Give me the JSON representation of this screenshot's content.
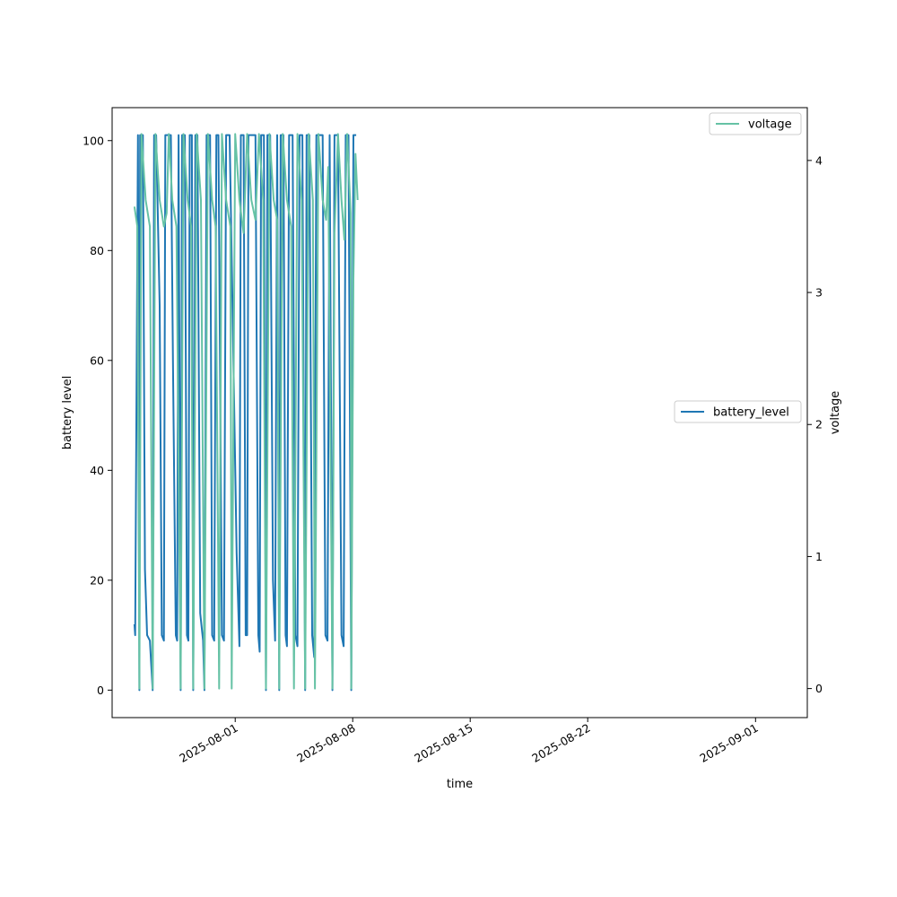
{
  "chart_data": {
    "type": "line",
    "xlabel": "time",
    "ylabel_left": "battery level",
    "ylabel_right": "voltage",
    "x_range": [
      "2025-07-24T16:00",
      "2025-09-04T02:00"
    ],
    "ylim_left": [
      -5,
      106
    ],
    "ylim_right": [
      -0.22,
      4.4
    ],
    "x_ticks": [
      "2025-08-01",
      "2025-08-08",
      "2025-08-15",
      "2025-08-22",
      "2025-09-01"
    ],
    "y_ticks_left": [
      0,
      20,
      40,
      60,
      80,
      100
    ],
    "y_ticks_right": [
      0,
      1,
      2,
      3,
      4
    ],
    "grid": false,
    "legends": [
      {
        "series": "voltage",
        "placement": "upper-right"
      },
      {
        "series": "battery_level",
        "placement": "center-right"
      }
    ],
    "series": [
      {
        "name": "battery_level",
        "axis": "left",
        "color": "#1f77b4",
        "points": [
          [
            "2025-07-26T00:00",
            12
          ],
          [
            "2025-07-26T01:00",
            10
          ],
          [
            "2025-07-26T05:00",
            101
          ],
          [
            "2025-07-26T07:00",
            0
          ],
          [
            "2025-07-26T08:00",
            101
          ],
          [
            "2025-07-26T12:00",
            101
          ],
          [
            "2025-07-26T15:00",
            22
          ],
          [
            "2025-07-26T18:00",
            10
          ],
          [
            "2025-07-26T22:00",
            9
          ],
          [
            "2025-07-27T02:00",
            0
          ],
          [
            "2025-07-27T04:00",
            101
          ],
          [
            "2025-07-27T07:00",
            101
          ],
          [
            "2025-07-27T12:00",
            70
          ],
          [
            "2025-07-27T15:00",
            10
          ],
          [
            "2025-07-27T18:00",
            9
          ],
          [
            "2025-07-27T20:00",
            101
          ],
          [
            "2025-07-28T00:00",
            101
          ],
          [
            "2025-07-28T04:00",
            101
          ],
          [
            "2025-07-28T07:00",
            60
          ],
          [
            "2025-07-28T11:00",
            10
          ],
          [
            "2025-07-28T13:00",
            9
          ],
          [
            "2025-07-28T15:00",
            101
          ],
          [
            "2025-07-28T18:00",
            0
          ],
          [
            "2025-07-28T20:00",
            101
          ],
          [
            "2025-07-29T00:00",
            101
          ],
          [
            "2025-07-29T03:00",
            10
          ],
          [
            "2025-07-29T05:00",
            9
          ],
          [
            "2025-07-29T07:00",
            101
          ],
          [
            "2025-07-29T10:00",
            101
          ],
          [
            "2025-07-29T12:00",
            0
          ],
          [
            "2025-07-29T15:00",
            101
          ],
          [
            "2025-07-29T18:00",
            101
          ],
          [
            "2025-07-29T22:00",
            14
          ],
          [
            "2025-07-30T02:00",
            9
          ],
          [
            "2025-07-30T04:00",
            0
          ],
          [
            "2025-07-30T07:00",
            101
          ],
          [
            "2025-07-30T12:00",
            101
          ],
          [
            "2025-07-30T15:00",
            10
          ],
          [
            "2025-07-30T18:00",
            9
          ],
          [
            "2025-07-30T21:00",
            101
          ],
          [
            "2025-07-31T00:00",
            101
          ],
          [
            "2025-07-31T05:00",
            10
          ],
          [
            "2025-07-31T08:00",
            9
          ],
          [
            "2025-07-31T11:00",
            101
          ],
          [
            "2025-07-31T16:00",
            101
          ],
          [
            "2025-08-01T02:00",
            25
          ],
          [
            "2025-08-01T06:00",
            8
          ],
          [
            "2025-08-01T08:00",
            101
          ],
          [
            "2025-08-01T12:00",
            101
          ],
          [
            "2025-08-01T15:00",
            10
          ],
          [
            "2025-08-01T17:00",
            10
          ],
          [
            "2025-08-01T19:00",
            101
          ],
          [
            "2025-08-02T00:00",
            101
          ],
          [
            "2025-08-02T05:00",
            101
          ],
          [
            "2025-08-02T09:00",
            10
          ],
          [
            "2025-08-02T11:00",
            7
          ],
          [
            "2025-08-02T13:00",
            101
          ],
          [
            "2025-08-02T17:00",
            101
          ],
          [
            "2025-08-02T20:00",
            0
          ],
          [
            "2025-08-02T22:00",
            101
          ],
          [
            "2025-08-03T02:00",
            101
          ],
          [
            "2025-08-03T06:00",
            20
          ],
          [
            "2025-08-03T09:00",
            9
          ],
          [
            "2025-08-03T12:00",
            101
          ],
          [
            "2025-08-03T15:00",
            0
          ],
          [
            "2025-08-03T17:00",
            101
          ],
          [
            "2025-08-03T21:00",
            101
          ],
          [
            "2025-08-04T00:00",
            10
          ],
          [
            "2025-08-04T02:00",
            8
          ],
          [
            "2025-08-04T05:00",
            101
          ],
          [
            "2025-08-04T10:00",
            101
          ],
          [
            "2025-08-04T14:00",
            10
          ],
          [
            "2025-08-04T17:00",
            8
          ],
          [
            "2025-08-04T20:00",
            101
          ],
          [
            "2025-08-05T00:00",
            101
          ],
          [
            "2025-08-05T04:00",
            0
          ],
          [
            "2025-08-05T06:00",
            101
          ],
          [
            "2025-08-05T10:00",
            101
          ],
          [
            "2025-08-05T14:00",
            10
          ],
          [
            "2025-08-05T17:00",
            6
          ],
          [
            "2025-08-05T20:00",
            101
          ],
          [
            "2025-08-06T00:00",
            101
          ],
          [
            "2025-08-06T05:00",
            101
          ],
          [
            "2025-08-06T09:00",
            10
          ],
          [
            "2025-08-06T12:00",
            9
          ],
          [
            "2025-08-06T15:00",
            101
          ],
          [
            "2025-08-06T19:00",
            0
          ],
          [
            "2025-08-06T22:00",
            101
          ],
          [
            "2025-08-07T03:00",
            101
          ],
          [
            "2025-08-07T08:00",
            10
          ],
          [
            "2025-08-07T11:00",
            8
          ],
          [
            "2025-08-07T14:00",
            101
          ],
          [
            "2025-08-07T18:00",
            101
          ],
          [
            "2025-08-07T22:00",
            0
          ],
          [
            "2025-08-08T01:00",
            101
          ],
          [
            "2025-08-08T05:00",
            101
          ]
        ]
      },
      {
        "name": "voltage",
        "axis": "right",
        "color": "#66c2a5",
        "points": [
          [
            "2025-07-26T00:00",
            3.65
          ],
          [
            "2025-07-26T04:00",
            3.5
          ],
          [
            "2025-07-26T07:00",
            0
          ],
          [
            "2025-07-26T10:00",
            4.2
          ],
          [
            "2025-07-26T16:00",
            3.7
          ],
          [
            "2025-07-26T22:00",
            3.5
          ],
          [
            "2025-07-27T02:00",
            0
          ],
          [
            "2025-07-27T06:00",
            4.2
          ],
          [
            "2025-07-27T12:00",
            3.7
          ],
          [
            "2025-07-27T18:00",
            3.5
          ],
          [
            "2025-07-27T22:00",
            3.6
          ],
          [
            "2025-07-28T01:00",
            4.2
          ],
          [
            "2025-07-28T06:00",
            3.7
          ],
          [
            "2025-07-28T12:00",
            3.5
          ],
          [
            "2025-07-28T18:00",
            0
          ],
          [
            "2025-07-28T22:00",
            4.2
          ],
          [
            "2025-07-29T04:00",
            3.7
          ],
          [
            "2025-07-29T09:00",
            3.5
          ],
          [
            "2025-07-29T12:00",
            0
          ],
          [
            "2025-07-29T17:00",
            4.2
          ],
          [
            "2025-07-29T23:00",
            3.7
          ],
          [
            "2025-07-30T04:00",
            0
          ],
          [
            "2025-07-30T09:00",
            4.2
          ],
          [
            "2025-07-30T15:00",
            3.7
          ],
          [
            "2025-07-30T20:00",
            3.5
          ],
          [
            "2025-07-31T01:00",
            0
          ],
          [
            "2025-07-31T05:00",
            4.2
          ],
          [
            "2025-07-31T11:00",
            3.7
          ],
          [
            "2025-07-31T17:00",
            3.5
          ],
          [
            "2025-07-31T19:00",
            0
          ],
          [
            "2025-08-01T00:00",
            4.2
          ],
          [
            "2025-08-01T06:00",
            3.7
          ],
          [
            "2025-08-01T12:00",
            3.45
          ],
          [
            "2025-08-01T17:00",
            4.2
          ],
          [
            "2025-08-01T23:00",
            3.7
          ],
          [
            "2025-08-02T05:00",
            3.55
          ],
          [
            "2025-08-02T10:00",
            4.2
          ],
          [
            "2025-08-02T16:00",
            3.7
          ],
          [
            "2025-08-02T20:00",
            0
          ],
          [
            "2025-08-03T01:00",
            4.2
          ],
          [
            "2025-08-03T07:00",
            3.7
          ],
          [
            "2025-08-03T12:00",
            3.55
          ],
          [
            "2025-08-03T15:00",
            0
          ],
          [
            "2025-08-03T20:00",
            4.2
          ],
          [
            "2025-08-04T02:00",
            3.7
          ],
          [
            "2025-08-04T08:00",
            3.5
          ],
          [
            "2025-08-04T12:00",
            0
          ],
          [
            "2025-08-04T17:00",
            4.2
          ],
          [
            "2025-08-04T23:00",
            3.7
          ],
          [
            "2025-08-05T04:00",
            0
          ],
          [
            "2025-08-05T09:00",
            4.2
          ],
          [
            "2025-08-05T15:00",
            3.7
          ],
          [
            "2025-08-05T18:00",
            0
          ],
          [
            "2025-08-05T23:00",
            4.2
          ],
          [
            "2025-08-06T05:00",
            3.7
          ],
          [
            "2025-08-06T10:00",
            3.55
          ],
          [
            "2025-08-06T13:00",
            3.95
          ],
          [
            "2025-08-06T19:00",
            0
          ],
          [
            "2025-08-06T22:00",
            3.45
          ],
          [
            "2025-08-07T03:00",
            4.2
          ],
          [
            "2025-08-07T08:00",
            3.7
          ],
          [
            "2025-08-07T12:00",
            3.4
          ],
          [
            "2025-08-07T16:00",
            4.2
          ],
          [
            "2025-08-07T21:00",
            3.6
          ],
          [
            "2025-08-07T22:00",
            0
          ],
          [
            "2025-08-08T01:00",
            3.1
          ],
          [
            "2025-08-08T04:00",
            4.05
          ],
          [
            "2025-08-08T07:00",
            3.7
          ]
        ]
      }
    ]
  }
}
